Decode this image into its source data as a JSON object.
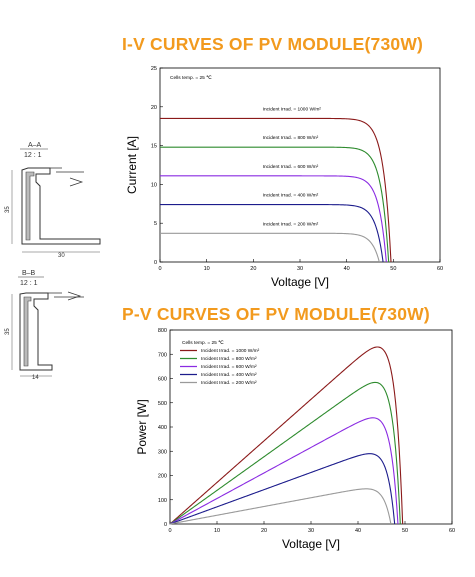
{
  "iv_title": "I-V CURVES OF PV MODULE(730W)",
  "pv_title": "P-V CURVES OF PV MODULE(730W)",
  "profiles": {
    "section_a": {
      "label": "A–A",
      "scale": "12 : 1",
      "height_dim": "35",
      "width_dim": "30"
    },
    "section_b": {
      "label": "B–B",
      "scale": "12 : 1",
      "height_dim": "35",
      "width_dim": "14"
    }
  },
  "chart_data": [
    {
      "type": "line",
      "title": "I-V CURVES OF PV MODULE(730W)",
      "xlabel": "Voltage [V]",
      "ylabel": "Current [A]",
      "xlim": [
        0,
        60
      ],
      "ylim": [
        0,
        25
      ],
      "xticks": [
        0,
        10,
        20,
        30,
        40,
        50,
        60
      ],
      "yticks": [
        0,
        5,
        10,
        15,
        20,
        25
      ],
      "annotation": "Cells temp. = 25 ℃",
      "legend_placement": "inline labels above curves",
      "series": [
        {
          "name": "Incident Irrad. = 1000 W/m²",
          "color": "#8b1a1a",
          "isc": 18.5,
          "voc": 49.5
        },
        {
          "name": "Incident Irrad. = 800 W/m²",
          "color": "#2e8b2e",
          "isc": 14.8,
          "voc": 49.0
        },
        {
          "name": "Incident Irrad. = 600 W/m²",
          "color": "#8a2be2",
          "isc": 11.1,
          "voc": 48.5
        },
        {
          "name": "Incident Irrad. = 400 W/m²",
          "color": "#1c1c8c",
          "isc": 7.4,
          "voc": 47.8
        },
        {
          "name": "Incident Irrad. = 200 W/m²",
          "color": "#9a9a9a",
          "isc": 3.7,
          "voc": 47.0
        }
      ]
    },
    {
      "type": "line",
      "title": "P-V CURVES OF PV MODULE(730W)",
      "xlabel": "Voltage [V]",
      "ylabel": "Power [W]",
      "xlim": [
        0,
        60
      ],
      "ylim": [
        0,
        800
      ],
      "xticks": [
        0,
        10,
        20,
        30,
        40,
        50,
        60
      ],
      "yticks": [
        0,
        100,
        200,
        300,
        400,
        500,
        600,
        700,
        800
      ],
      "annotation": "Cells temp. = 25 ℃",
      "legend_placement": "top-left",
      "series": [
        {
          "name": "Incident Irrad. = 1000 W/m²",
          "color": "#8b1a1a",
          "vmp": 41.8,
          "pmax": 730,
          "voc": 49.5
        },
        {
          "name": "Incident Irrad. = 800 W/m²",
          "color": "#2e8b2e",
          "vmp": 41.5,
          "pmax": 584,
          "voc": 49.0
        },
        {
          "name": "Incident Irrad. = 600 W/m²",
          "color": "#8a2be2",
          "vmp": 41.0,
          "pmax": 438,
          "voc": 48.5
        },
        {
          "name": "Incident Irrad. = 400 W/m²",
          "color": "#1c1c8c",
          "vmp": 40.5,
          "pmax": 290,
          "voc": 47.8
        },
        {
          "name": "Incident Irrad. = 200 W/m²",
          "color": "#9a9a9a",
          "vmp": 40.0,
          "pmax": 145,
          "voc": 47.0
        }
      ]
    }
  ]
}
